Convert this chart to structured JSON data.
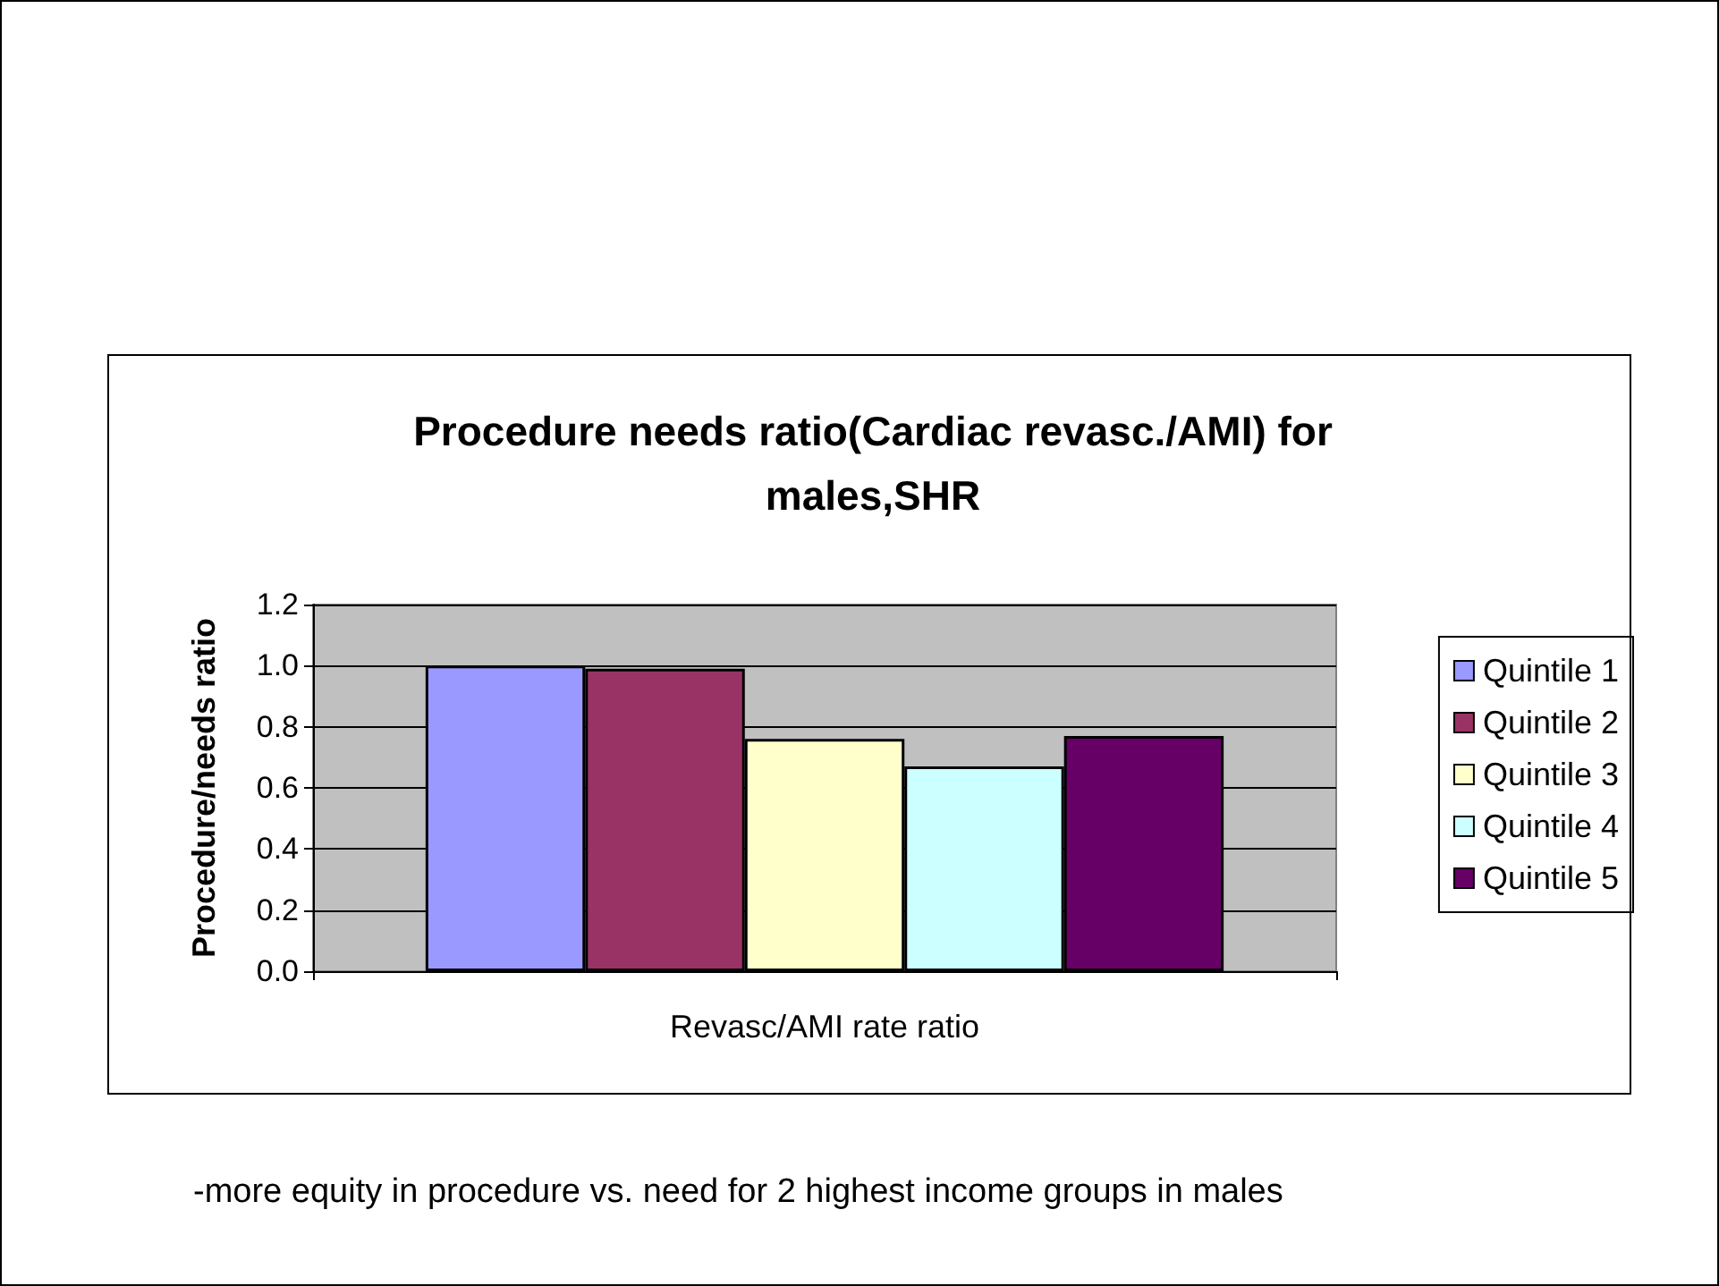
{
  "chart_data": {
    "type": "bar",
    "title": "Procedure needs ratio(Cardiac revasc./AMI) for\nmales,SHR",
    "xlabel": "Revasc/AMI rate ratio",
    "ylabel": "Procedure/needs ratio",
    "categories": [
      null
    ],
    "series": [
      {
        "name": "Quintile 1",
        "color": "#9999ff",
        "values": [
          1.0
        ]
      },
      {
        "name": "Quintile 2",
        "color": "#993366",
        "values": [
          0.99
        ]
      },
      {
        "name": "Quintile 3",
        "color": "#ffffcc",
        "values": [
          0.76
        ]
      },
      {
        "name": "Quintile 4",
        "color": "#ccffff",
        "values": [
          0.67
        ]
      },
      {
        "name": "Quintile 5",
        "color": "#660066",
        "values": [
          0.77
        ]
      }
    ],
    "ylim": [
      0,
      1.2
    ],
    "yticks": [
      {
        "value": 0,
        "label": "0.0"
      },
      0.2,
      0.4,
      0.6,
      0.8,
      {
        "value": 1,
        "label": "1.0"
      },
      1.2
    ],
    "grid": "y",
    "legend": "right",
    "annotations": [
      "-more equity in procedure vs. need for 2 highest income groups in males"
    ]
  }
}
